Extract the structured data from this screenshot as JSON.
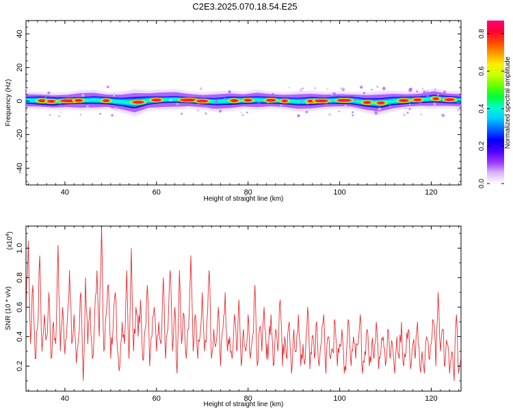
{
  "title": "C2E3.2025.070.18.54.E25",
  "chart_data": [
    {
      "type": "heatmap",
      "xlabel": "Height of straight line (km)",
      "ylabel": "Frequency (Hz)",
      "xlim": [
        31.5,
        126.5
      ],
      "ylim": [
        -50,
        48
      ],
      "xticks": [
        40,
        60,
        80,
        100,
        120
      ],
      "yticks": [
        -40,
        -20,
        0,
        20,
        40
      ],
      "band": {
        "center_hz": [
          0.5,
          0.3,
          -0.2,
          0.1,
          0.4,
          0.6,
          0.2,
          -0.5,
          -1.0,
          0.3,
          0.8,
          1.0,
          0.6,
          0.0,
          -0.3,
          0.2,
          0.4,
          0.7,
          0.5,
          0.1,
          -0.3,
          0.0,
          0.2,
          0.5,
          0.3,
          -0.8,
          -1.2,
          0.0,
          0.4,
          0.8,
          1.5,
          0.9,
          0.5
        ],
        "core_halfwidth_hz": [
          2.0,
          2.5,
          2.5,
          2.0,
          2.0,
          2.3,
          2.2,
          2.5,
          3.5,
          2.5,
          2.0,
          2.0,
          1.8,
          2.0,
          2.2,
          2.5,
          2.2,
          2.2,
          2.0,
          2.0,
          2.3,
          2.5,
          2.0,
          2.2,
          2.3,
          2.5,
          3.0,
          2.5,
          2.2,
          2.0,
          2.3,
          2.2,
          2.0
        ],
        "outer_halfwidth_hz": [
          5,
          5,
          5,
          5,
          6,
          6,
          5,
          6,
          8,
          6,
          6,
          6,
          5,
          5,
          6,
          6,
          5,
          6,
          5,
          5,
          6,
          6,
          5,
          5,
          5,
          6,
          7,
          6,
          5,
          5,
          6,
          5,
          5
        ],
        "peak_km": [
          35,
          37,
          41,
          43,
          49,
          56,
          60,
          67,
          70,
          77,
          80,
          85,
          88,
          94,
          96,
          101,
          106,
          109,
          114,
          117,
          121,
          124
        ],
        "peak_halfwidth_km": [
          0.8,
          0.8,
          2.0,
          0.8,
          0.7,
          1.2,
          1.0,
          1.8,
          1.2,
          0.8,
          0.8,
          1.0,
          0.6,
          1.0,
          1.4,
          1.5,
          0.8,
          0.8,
          1.0,
          0.8,
          0.6,
          1.0
        ]
      },
      "colorbar": {
        "label": "Normalized spectral amplitude",
        "ticks": [
          0.0,
          0.2,
          0.4,
          0.6,
          0.8
        ],
        "range": [
          0,
          0.87
        ],
        "colors": [
          "#ffffff",
          "#d9b3ff",
          "#9933ff",
          "#4b00ff",
          "#0000ff",
          "#0066ff",
          "#00ccff",
          "#00ffcc",
          "#00ff33",
          "#66ff00",
          "#ccff00",
          "#ffee00",
          "#ff9900",
          "#ff4400",
          "#ff0033",
          "#ff0077"
        ]
      }
    },
    {
      "type": "line",
      "xlabel": "Height of straight line (km)",
      "ylabel": "SNR (10 * v/v)",
      "multiplier": "(x10",
      "multiplier_exp": "4",
      "xlim": [
        31.5,
        126.5
      ],
      "ylim": [
        0.03,
        1.15
      ],
      "xticks": [
        40,
        60,
        80,
        100,
        120
      ],
      "yticks": [
        0.2,
        0.4,
        0.6,
        0.8,
        1.0
      ],
      "color": "#e8262b",
      "x": [
        31.5,
        32.0,
        32.5,
        33.0,
        33.5,
        34.0,
        34.5,
        35.0,
        35.5,
        36.0,
        36.5,
        37.0,
        37.5,
        38.0,
        38.5,
        39.0,
        39.5,
        40.0,
        40.5,
        41.0,
        41.5,
        42.0,
        42.5,
        43.0,
        43.5,
        44.0,
        44.5,
        45.0,
        45.5,
        46.0,
        46.5,
        47.0,
        47.5,
        48.0,
        48.5,
        49.0,
        49.5,
        50.0,
        50.5,
        51.0,
        51.5,
        52.0,
        52.5,
        53.0,
        53.5,
        54.0,
        54.5,
        55.0,
        55.5,
        56.0,
        56.5,
        57.0,
        57.5,
        58.0,
        58.5,
        59.0,
        59.5,
        60.0,
        60.5,
        61.0,
        61.5,
        62.0,
        62.5,
        63.0,
        63.5,
        64.0,
        64.5,
        65.0,
        65.5,
        66.0,
        66.5,
        67.0,
        67.5,
        68.0,
        68.5,
        69.0,
        69.5,
        70.0,
        70.5,
        71.0,
        71.5,
        72.0,
        72.5,
        73.0,
        73.5,
        74.0,
        74.5,
        75.0,
        75.5,
        76.0,
        76.5,
        77.0,
        77.5,
        78.0,
        78.5,
        79.0,
        79.5,
        80.0,
        80.5,
        81.0,
        81.5,
        82.0,
        82.5,
        83.0,
        83.5,
        84.0,
        84.5,
        85.0,
        85.5,
        86.0,
        86.5,
        87.0,
        87.5,
        88.0,
        88.5,
        89.0,
        89.5,
        90.0,
        90.5,
        91.0,
        91.5,
        92.0,
        92.5,
        93.0,
        93.5,
        94.0,
        94.5,
        95.0,
        95.5,
        96.0,
        96.5,
        97.0,
        97.5,
        98.0,
        98.5,
        99.0,
        99.5,
        100.0,
        100.5,
        101.0,
        101.5,
        102.0,
        102.5,
        103.0,
        103.5,
        104.0,
        104.5,
        105.0,
        105.5,
        106.0,
        106.5,
        107.0,
        107.5,
        108.0,
        108.5,
        109.0,
        109.5,
        110.0,
        110.5,
        111.0,
        111.5,
        112.0,
        112.5,
        113.0,
        113.5,
        114.0,
        114.5,
        115.0,
        115.5,
        116.0,
        116.5,
        117.0,
        117.5,
        118.0,
        118.5,
        119.0,
        119.5,
        120.0,
        120.5,
        121.0,
        121.5,
        122.0,
        122.5,
        123.0,
        123.5,
        124.0,
        124.5,
        125.0,
        125.5,
        126.0,
        126.5
      ],
      "y": [
        0.55,
        1.05,
        0.35,
        0.75,
        0.25,
        0.45,
        0.95,
        0.3,
        0.55,
        0.4,
        0.7,
        0.25,
        0.5,
        0.35,
        1.02,
        0.3,
        0.6,
        0.28,
        0.5,
        0.85,
        0.35,
        0.55,
        0.22,
        0.4,
        0.7,
        0.1,
        0.8,
        0.35,
        0.6,
        0.25,
        0.55,
        0.85,
        0.4,
        1.15,
        0.3,
        0.55,
        0.75,
        0.25,
        0.45,
        0.7,
        0.3,
        0.2,
        0.5,
        0.35,
        0.85,
        0.25,
        1.0,
        0.3,
        0.6,
        0.4,
        0.65,
        0.25,
        0.45,
        0.75,
        0.2,
        0.4,
        0.6,
        0.3,
        0.5,
        0.35,
        0.8,
        0.25,
        0.45,
        0.85,
        0.3,
        0.6,
        0.15,
        0.85,
        0.35,
        0.55,
        0.25,
        0.45,
        0.95,
        0.3,
        0.55,
        0.25,
        0.4,
        0.7,
        0.3,
        0.5,
        0.85,
        0.25,
        0.45,
        0.35,
        0.6,
        0.2,
        0.45,
        0.7,
        0.3,
        0.4,
        0.25,
        0.55,
        0.3,
        0.65,
        0.2,
        0.45,
        0.3,
        0.55,
        0.25,
        0.4,
        0.75,
        0.2,
        0.45,
        0.3,
        0.6,
        0.25,
        0.35,
        0.55,
        0.2,
        0.45,
        0.3,
        0.65,
        0.2,
        0.4,
        0.25,
        0.5,
        0.15,
        0.45,
        0.3,
        0.55,
        0.2,
        0.35,
        0.25,
        0.6,
        0.18,
        0.4,
        0.25,
        0.5,
        0.2,
        0.35,
        0.55,
        0.15,
        0.4,
        0.25,
        0.3,
        0.5,
        0.2,
        0.35,
        0.45,
        0.15,
        0.3,
        0.5,
        0.2,
        0.4,
        0.25,
        0.35,
        0.55,
        0.15,
        0.3,
        0.45,
        0.2,
        0.35,
        0.25,
        0.5,
        0.18,
        0.3,
        0.4,
        0.2,
        0.45,
        0.25,
        0.35,
        0.15,
        0.4,
        0.25,
        0.5,
        0.2,
        0.3,
        0.45,
        0.18,
        0.35,
        0.25,
        0.5,
        0.2,
        0.3,
        0.15,
        0.4,
        0.25,
        0.35,
        0.5,
        0.2,
        0.7,
        0.3,
        0.45,
        0.2,
        0.35,
        0.15,
        0.3,
        0.1,
        0.55,
        0.15,
        0.25
      ],
      "notable_peaks_km": [
        32.0,
        34.5,
        38.5,
        41.0,
        47.0,
        48.0,
        53.0,
        57.0,
        61.0,
        63.5,
        65.0,
        68.5,
        72.5,
        77.0,
        82.0,
        86.0,
        92.0,
        103.0,
        122.0,
        125.5
      ]
    }
  ]
}
